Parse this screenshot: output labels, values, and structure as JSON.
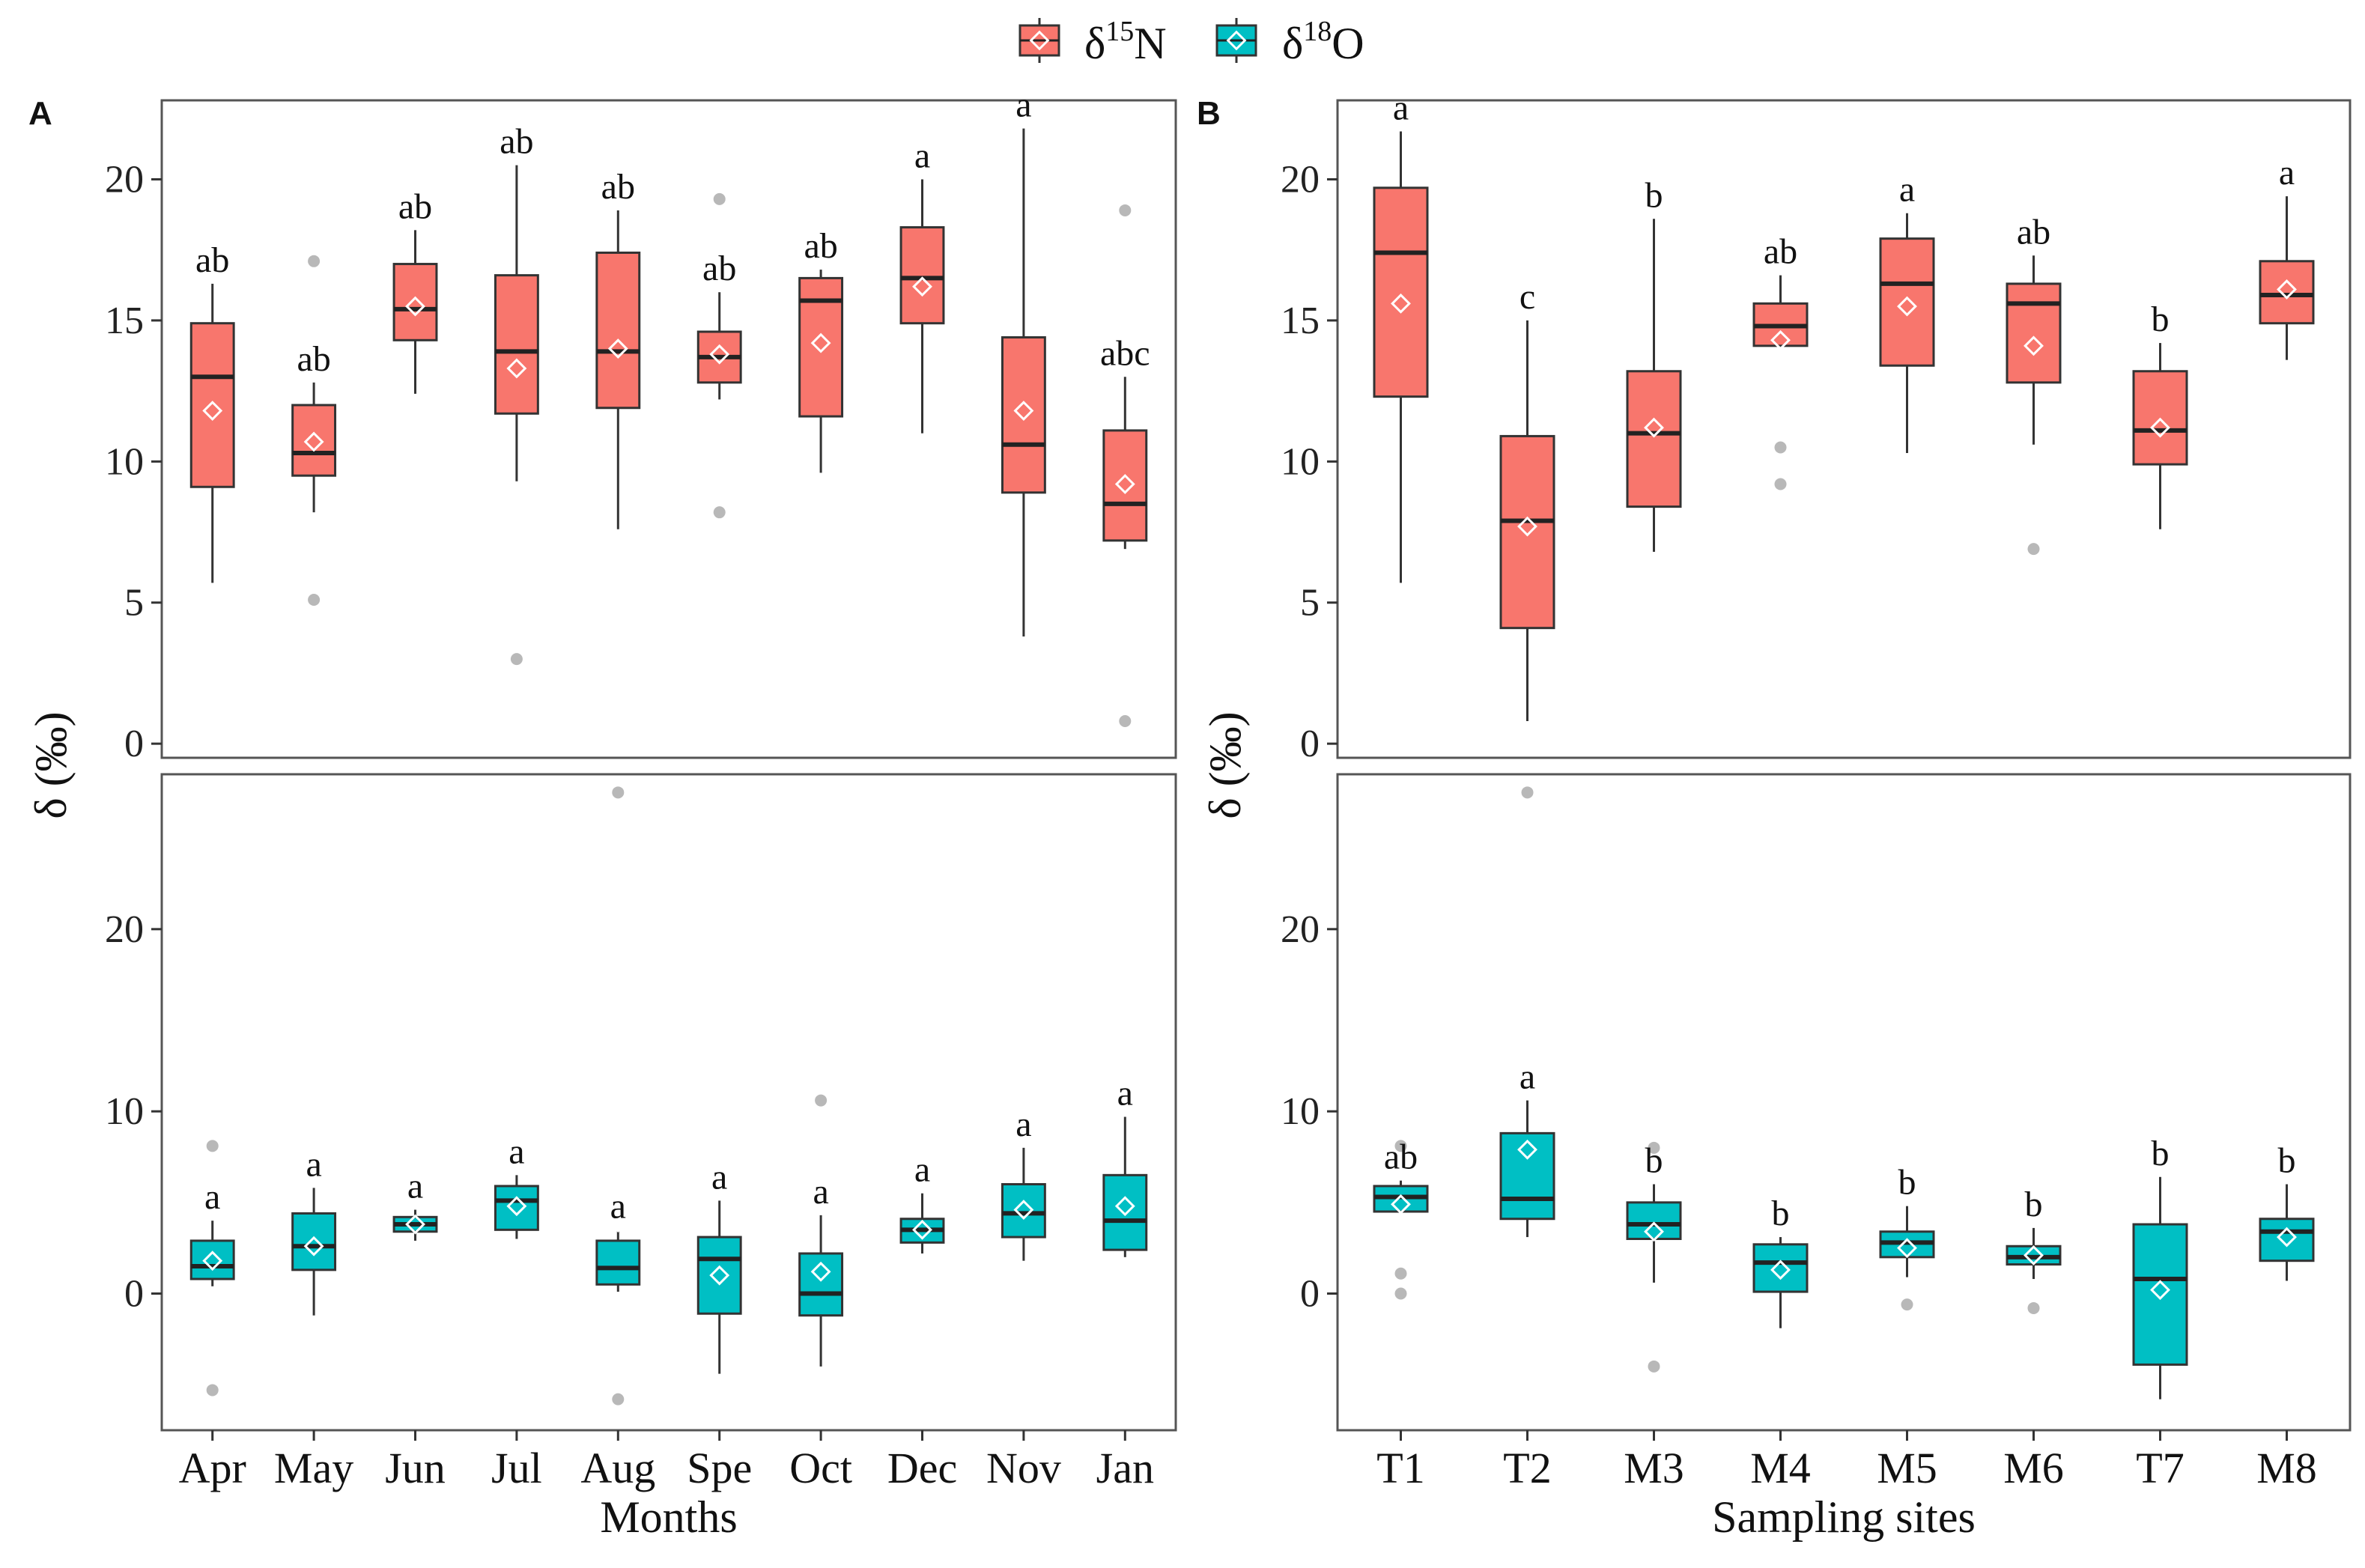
{
  "colors": {
    "n15": "#F8766D",
    "o18": "#00BFC4",
    "median": "#222222",
    "outlier": "#b8b8b8",
    "mean_marker": "#ffffff"
  },
  "legend": {
    "n15_label": "δ",
    "n15_sup": "15",
    "n15_suffix": "N",
    "o18_label": "δ",
    "o18_sup": "18",
    "o18_suffix": "O"
  },
  "chart_data": [
    {
      "panel": "A",
      "type": "box",
      "xlabel": "Months",
      "ylabel": "δ (‰)",
      "categories": [
        "Apr",
        "May",
        "Jun",
        "Jul",
        "Aug",
        "Spe",
        "Oct",
        "Dec",
        "Nov",
        "Jan"
      ],
      "n15": {
        "ylim": [
          -0.5,
          22.8
        ],
        "yticks": [
          0,
          5,
          10,
          15,
          20
        ],
        "boxes": [
          {
            "whisker_low": 5.7,
            "q1": 9.1,
            "median": 13.0,
            "q3": 14.9,
            "whisker_high": 16.3,
            "mean": 11.8,
            "outliers": [],
            "label": "ab"
          },
          {
            "whisker_low": 8.2,
            "q1": 9.5,
            "median": 10.3,
            "q3": 12.0,
            "whisker_high": 12.8,
            "mean": 10.7,
            "outliers": [
              17.1,
              5.1
            ],
            "label": "ab"
          },
          {
            "whisker_low": 12.4,
            "q1": 14.3,
            "median": 15.4,
            "q3": 17.0,
            "whisker_high": 18.2,
            "mean": 15.5,
            "outliers": [],
            "label": "ab"
          },
          {
            "whisker_low": 9.3,
            "q1": 11.7,
            "median": 13.9,
            "q3": 16.6,
            "whisker_high": 20.5,
            "mean": 13.3,
            "outliers": [
              3.0
            ],
            "label": "ab"
          },
          {
            "whisker_low": 7.6,
            "q1": 11.9,
            "median": 13.9,
            "q3": 17.4,
            "whisker_high": 18.9,
            "mean": 14.0,
            "outliers": [],
            "label": "ab"
          },
          {
            "whisker_low": 12.2,
            "q1": 12.8,
            "median": 13.7,
            "q3": 14.6,
            "whisker_high": 16.0,
            "mean": 13.8,
            "outliers": [
              19.3,
              8.2
            ],
            "label": "ab"
          },
          {
            "whisker_low": 9.6,
            "q1": 11.6,
            "median": 15.7,
            "q3": 16.5,
            "whisker_high": 16.8,
            "mean": 14.2,
            "outliers": [],
            "label": "ab"
          },
          {
            "whisker_low": 11.0,
            "q1": 14.9,
            "median": 16.5,
            "q3": 18.3,
            "whisker_high": 20.0,
            "mean": 16.2,
            "outliers": [],
            "label": "a"
          },
          {
            "whisker_low": 3.8,
            "q1": 8.9,
            "median": 10.6,
            "q3": 14.4,
            "whisker_high": 21.8,
            "mean": 11.8,
            "outliers": [],
            "label": "a"
          },
          {
            "whisker_low": 6.9,
            "q1": 7.2,
            "median": 8.5,
            "q3": 11.1,
            "whisker_high": 13.0,
            "mean": 9.2,
            "outliers": [
              18.9,
              0.8
            ],
            "label": "abc"
          }
        ]
      },
      "o18": {
        "ylim": [
          -7.5,
          28.5
        ],
        "yticks": [
          0,
          10,
          20
        ],
        "boxes": [
          {
            "whisker_low": 0.4,
            "q1": 0.8,
            "median": 1.5,
            "q3": 2.9,
            "whisker_high": 4.0,
            "mean": 1.8,
            "outliers": [
              8.1,
              -5.3
            ],
            "label": "a"
          },
          {
            "whisker_low": -1.2,
            "q1": 1.3,
            "median": 2.6,
            "q3": 4.4,
            "whisker_high": 5.8,
            "mean": 2.6,
            "outliers": [],
            "label": "a"
          },
          {
            "whisker_low": 2.9,
            "q1": 3.4,
            "median": 3.8,
            "q3": 4.2,
            "whisker_high": 4.6,
            "mean": 3.8,
            "outliers": [],
            "label": "a"
          },
          {
            "whisker_low": 3.0,
            "q1": 3.5,
            "median": 5.1,
            "q3": 5.9,
            "whisker_high": 6.5,
            "mean": 4.8,
            "outliers": [],
            "label": "a"
          },
          {
            "whisker_low": 0.1,
            "q1": 0.5,
            "median": 1.4,
            "q3": 2.9,
            "whisker_high": 3.5,
            "mean": 3.9,
            "outliers": [
              27.5,
              -5.8
            ],
            "label": "a"
          },
          {
            "whisker_low": -4.4,
            "q1": -1.1,
            "median": 1.9,
            "q3": 3.1,
            "whisker_high": 5.1,
            "mean": 1.0,
            "outliers": [],
            "label": "a"
          },
          {
            "whisker_low": -4.0,
            "q1": -1.2,
            "median": 0.0,
            "q3": 2.2,
            "whisker_high": 4.3,
            "mean": 1.2,
            "outliers": [
              10.6
            ],
            "label": "a"
          },
          {
            "whisker_low": 2.2,
            "q1": 2.8,
            "median": 3.5,
            "q3": 4.1,
            "whisker_high": 5.5,
            "mean": 3.5,
            "outliers": [],
            "label": "a"
          },
          {
            "whisker_low": 1.8,
            "q1": 3.1,
            "median": 4.4,
            "q3": 6.0,
            "whisker_high": 8.0,
            "mean": 4.6,
            "outliers": [],
            "label": "a"
          },
          {
            "whisker_low": 2.0,
            "q1": 2.4,
            "median": 4.0,
            "q3": 6.5,
            "whisker_high": 9.7,
            "mean": 4.8,
            "outliers": [],
            "label": "a"
          }
        ]
      }
    },
    {
      "panel": "B",
      "type": "box",
      "xlabel": "Sampling sites",
      "ylabel": "δ (‰)",
      "categories": [
        "T1",
        "T2",
        "M3",
        "M4",
        "M5",
        "M6",
        "T7",
        "M8"
      ],
      "n15": {
        "ylim": [
          -0.5,
          22.8
        ],
        "yticks": [
          0,
          5,
          10,
          15,
          20
        ],
        "boxes": [
          {
            "whisker_low": 5.7,
            "q1": 12.3,
            "median": 17.4,
            "q3": 19.7,
            "whisker_high": 21.7,
            "mean": 15.6,
            "outliers": [],
            "label": "a"
          },
          {
            "whisker_low": 0.8,
            "q1": 4.1,
            "median": 7.9,
            "q3": 10.9,
            "whisker_high": 15.0,
            "mean": 7.7,
            "outliers": [],
            "label": "c"
          },
          {
            "whisker_low": 6.8,
            "q1": 8.4,
            "median": 11.0,
            "q3": 13.2,
            "whisker_high": 18.6,
            "mean": 11.2,
            "outliers": [],
            "label": "b"
          },
          {
            "whisker_low": 14.1,
            "q1": 14.1,
            "median": 14.8,
            "q3": 15.6,
            "whisker_high": 16.6,
            "mean": 14.3,
            "outliers": [
              10.5,
              9.2
            ],
            "label": "ab"
          },
          {
            "whisker_low": 10.3,
            "q1": 13.4,
            "median": 16.3,
            "q3": 17.9,
            "whisker_high": 18.8,
            "mean": 15.5,
            "outliers": [],
            "label": "a"
          },
          {
            "whisker_low": 10.6,
            "q1": 12.8,
            "median": 15.6,
            "q3": 16.3,
            "whisker_high": 17.3,
            "mean": 14.1,
            "outliers": [
              6.9
            ],
            "label": "ab"
          },
          {
            "whisker_low": 7.6,
            "q1": 9.9,
            "median": 11.1,
            "q3": 13.2,
            "whisker_high": 14.2,
            "mean": 11.2,
            "outliers": [],
            "label": "b"
          },
          {
            "whisker_low": 13.6,
            "q1": 14.9,
            "median": 15.9,
            "q3": 17.1,
            "whisker_high": 19.4,
            "mean": 16.1,
            "outliers": [],
            "label": "a"
          }
        ]
      },
      "o18": {
        "ylim": [
          -7.5,
          28.5
        ],
        "yticks": [
          0,
          10,
          20
        ],
        "boxes": [
          {
            "whisker_low": 4.5,
            "q1": 4.5,
            "median": 5.3,
            "q3": 5.9,
            "whisker_high": 6.2,
            "mean": 4.9,
            "outliers": [
              8.1,
              1.1,
              0.0
            ],
            "label": "ab"
          },
          {
            "whisker_low": 3.1,
            "q1": 4.1,
            "median": 5.2,
            "q3": 8.8,
            "whisker_high": 10.6,
            "mean": 7.9,
            "outliers": [
              27.5
            ],
            "label": "a"
          },
          {
            "whisker_low": 0.6,
            "q1": 3.0,
            "median": 3.8,
            "q3": 5.0,
            "whisker_high": 6.0,
            "mean": 3.4,
            "outliers": [
              8.0,
              -4.0
            ],
            "label": "b"
          },
          {
            "whisker_low": -1.9,
            "q1": 0.1,
            "median": 1.7,
            "q3": 2.7,
            "whisker_high": 3.1,
            "mean": 1.3,
            "outliers": [],
            "label": "b"
          },
          {
            "whisker_low": 0.9,
            "q1": 2.0,
            "median": 2.8,
            "q3": 3.4,
            "whisker_high": 4.8,
            "mean": 2.5,
            "outliers": [
              -0.6
            ],
            "label": "b"
          },
          {
            "whisker_low": 0.8,
            "q1": 1.6,
            "median": 2.0,
            "q3": 2.6,
            "whisker_high": 3.6,
            "mean": 2.1,
            "outliers": [
              -0.8
            ],
            "label": "b"
          },
          {
            "whisker_low": -5.8,
            "q1": -3.9,
            "median": 0.8,
            "q3": 3.8,
            "whisker_high": 6.4,
            "mean": 0.2,
            "outliers": [],
            "label": "b"
          },
          {
            "whisker_low": 0.7,
            "q1": 1.8,
            "median": 3.4,
            "q3": 4.1,
            "whisker_high": 6.0,
            "mean": 3.1,
            "outliers": [],
            "label": "b"
          }
        ]
      }
    }
  ]
}
